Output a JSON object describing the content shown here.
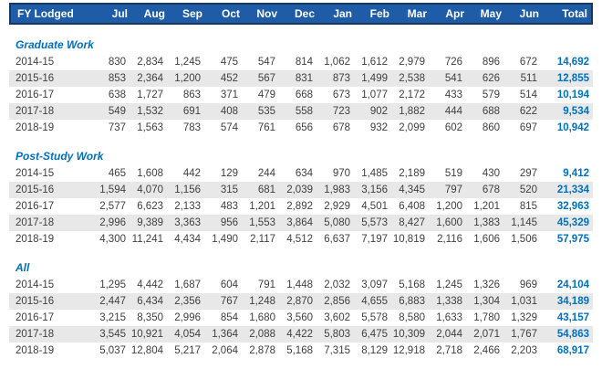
{
  "table": {
    "header": {
      "fy_label": "FY Lodged",
      "months": [
        "Jul",
        "Aug",
        "Sep",
        "Oct",
        "Nov",
        "Dec",
        "Jan",
        "Feb",
        "Mar",
        "Apr",
        "May",
        "Jun"
      ],
      "total_label": "Total"
    },
    "sections": [
      {
        "title": "Graduate Work",
        "rows": [
          {
            "fy": "2014-15",
            "values": [
              "830",
              "2,834",
              "1,245",
              "475",
              "547",
              "814",
              "1,062",
              "1,612",
              "2,979",
              "726",
              "896",
              "672"
            ],
            "total": "14,692"
          },
          {
            "fy": "2015-16",
            "values": [
              "853",
              "2,364",
              "1,200",
              "452",
              "567",
              "831",
              "873",
              "1,499",
              "2,538",
              "541",
              "626",
              "511"
            ],
            "total": "12,855"
          },
          {
            "fy": "2016-17",
            "values": [
              "638",
              "1,727",
              "863",
              "371",
              "479",
              "668",
              "673",
              "1,077",
              "2,172",
              "433",
              "579",
              "514"
            ],
            "total": "10,194"
          },
          {
            "fy": "2017-18",
            "values": [
              "549",
              "1,532",
              "691",
              "408",
              "535",
              "558",
              "723",
              "902",
              "1,882",
              "444",
              "688",
              "622"
            ],
            "total": "9,534"
          },
          {
            "fy": "2018-19",
            "values": [
              "737",
              "1,563",
              "783",
              "574",
              "761",
              "656",
              "678",
              "932",
              "2,099",
              "602",
              "860",
              "697"
            ],
            "total": "10,942"
          }
        ]
      },
      {
        "title": "Post-Study Work",
        "rows": [
          {
            "fy": "2014-15",
            "values": [
              "465",
              "1,608",
              "442",
              "129",
              "244",
              "634",
              "970",
              "1,485",
              "2,189",
              "519",
              "430",
              "297"
            ],
            "total": "9,412"
          },
          {
            "fy": "2015-16",
            "values": [
              "1,594",
              "4,070",
              "1,156",
              "315",
              "681",
              "2,039",
              "1,983",
              "3,156",
              "4,345",
              "797",
              "678",
              "520"
            ],
            "total": "21,334"
          },
          {
            "fy": "2016-17",
            "values": [
              "2,577",
              "6,623",
              "2,133",
              "483",
              "1,201",
              "2,892",
              "2,929",
              "4,501",
              "6,408",
              "1,200",
              "1,201",
              "815"
            ],
            "total": "32,963"
          },
          {
            "fy": "2017-18",
            "values": [
              "2,996",
              "9,389",
              "3,363",
              "956",
              "1,553",
              "3,864",
              "5,080",
              "5,573",
              "8,427",
              "1,600",
              "1,383",
              "1,145"
            ],
            "total": "45,329"
          },
          {
            "fy": "2018-19",
            "values": [
              "4,300",
              "11,241",
              "4,434",
              "1,490",
              "2,117",
              "4,512",
              "6,637",
              "7,197",
              "10,819",
              "2,116",
              "1,606",
              "1,506"
            ],
            "total": "57,975"
          }
        ]
      },
      {
        "title": "All",
        "rows": [
          {
            "fy": "2014-15",
            "values": [
              "1,295",
              "4,442",
              "1,687",
              "604",
              "791",
              "1,448",
              "2,032",
              "3,097",
              "5,168",
              "1,245",
              "1,326",
              "969"
            ],
            "total": "24,104"
          },
          {
            "fy": "2015-16",
            "values": [
              "2,447",
              "6,434",
              "2,356",
              "767",
              "1,248",
              "2,870",
              "2,856",
              "4,655",
              "6,883",
              "1,338",
              "1,304",
              "1,031"
            ],
            "total": "34,189"
          },
          {
            "fy": "2016-17",
            "values": [
              "3,215",
              "8,350",
              "2,996",
              "854",
              "1,680",
              "3,560",
              "3,602",
              "5,578",
              "8,580",
              "1,633",
              "1,780",
              "1,329"
            ],
            "total": "43,157"
          },
          {
            "fy": "2017-18",
            "values": [
              "3,545",
              "10,921",
              "4,054",
              "1,364",
              "2,088",
              "4,422",
              "5,803",
              "6,475",
              "10,309",
              "2,044",
              "2,071",
              "1,767"
            ],
            "total": "54,863"
          },
          {
            "fy": "2018-19",
            "values": [
              "5,037",
              "12,804",
              "5,217",
              "2,064",
              "2,878",
              "5,168",
              "7,315",
              "8,129",
              "12,918",
              "2,718",
              "2,466",
              "2,203"
            ],
            "total": "68,917"
          }
        ]
      }
    ]
  },
  "colors": {
    "header_bg": "#1E5CA8",
    "header_border": "#17375E",
    "header_text": "#FFFFFF",
    "accent_blue": "#0070C0",
    "row_stripe": "#E8E8E8",
    "data_text": "#404040"
  }
}
